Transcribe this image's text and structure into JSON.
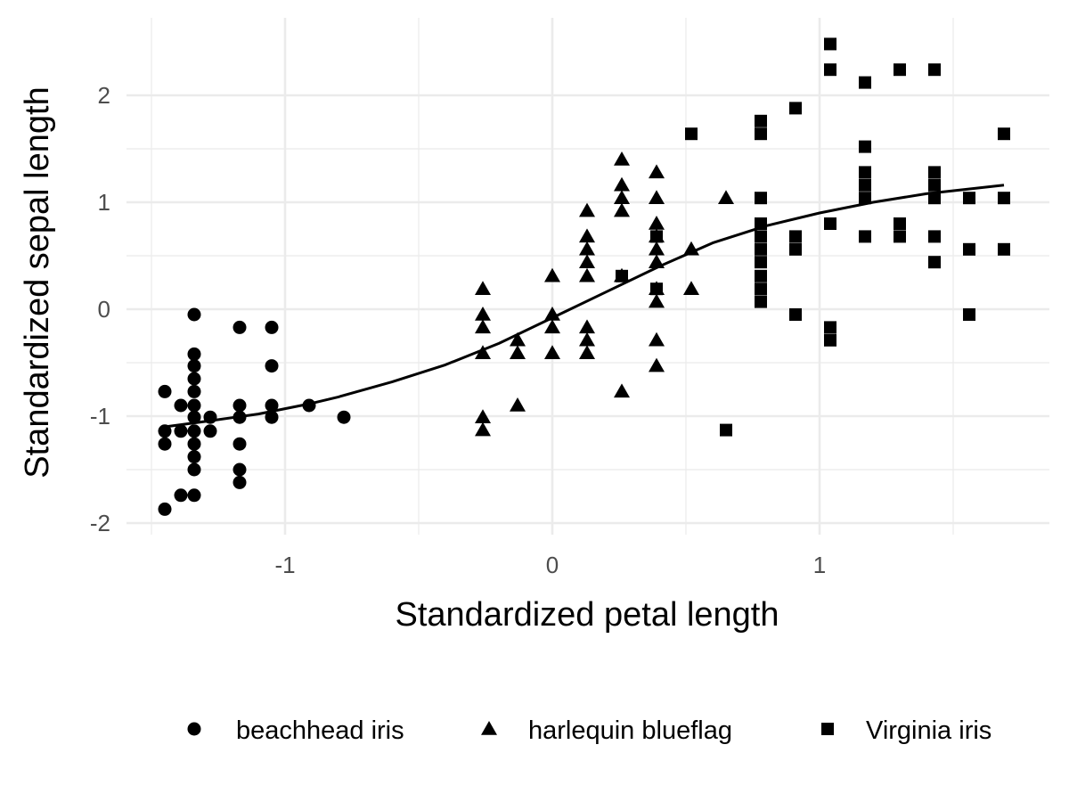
{
  "chart_data": {
    "type": "scatter",
    "title": "",
    "xlabel": "Standardized petal length",
    "ylabel": "Standardized sepal length",
    "xlim": [
      -1.58,
      1.85
    ],
    "ylim": [
      -2.05,
      2.55
    ],
    "x_ticks": [
      -1,
      0,
      1
    ],
    "x_tick_labels": [
      "-1",
      "0",
      "1"
    ],
    "y_ticks": [
      -2,
      -1,
      0,
      1,
      2
    ],
    "y_tick_labels": [
      "-2",
      "-1",
      "0",
      "1",
      "2"
    ],
    "x_minor_ticks": [
      -1.5,
      -0.5,
      0.5,
      1.5
    ],
    "y_minor_ticks": [
      -1.5,
      -0.5,
      0.5,
      1.5
    ],
    "grid": true,
    "legend_position": "bottom",
    "colors": {
      "points": "#000000",
      "grid": "#ebebeb",
      "smooth": "#000000"
    },
    "series": [
      {
        "name": "beachhead iris",
        "shape": "circle",
        "points": [
          [
            -1.34,
            -0.05
          ],
          [
            -1.34,
            -0.42
          ],
          [
            -1.34,
            -0.53
          ],
          [
            -1.34,
            -0.65
          ],
          [
            -1.34,
            -0.77
          ],
          [
            -1.34,
            -0.9
          ],
          [
            -1.34,
            -1.01
          ],
          [
            -1.34,
            -1.14
          ],
          [
            -1.34,
            -1.26
          ],
          [
            -1.34,
            -1.38
          ],
          [
            -1.34,
            -1.5
          ],
          [
            -1.34,
            -1.74
          ],
          [
            -1.39,
            -1.14
          ],
          [
            -1.39,
            -0.9
          ],
          [
            -1.39,
            -1.74
          ],
          [
            -1.45,
            -0.77
          ],
          [
            -1.45,
            -1.14
          ],
          [
            -1.45,
            -1.26
          ],
          [
            -1.45,
            -1.87
          ],
          [
            -1.28,
            -1.01
          ],
          [
            -1.28,
            -1.14
          ],
          [
            -1.17,
            -0.17
          ],
          [
            -1.17,
            -0.9
          ],
          [
            -1.17,
            -1.01
          ],
          [
            -1.17,
            -1.26
          ],
          [
            -1.17,
            -1.5
          ],
          [
            -1.17,
            -1.62
          ],
          [
            -1.05,
            -0.17
          ],
          [
            -1.05,
            -0.53
          ],
          [
            -1.05,
            -0.9
          ],
          [
            -1.05,
            -1.01
          ],
          [
            -0.91,
            -0.9
          ],
          [
            -0.78,
            -1.01
          ]
        ]
      },
      {
        "name": "harlequin blueflag",
        "shape": "triangle",
        "points": [
          [
            -0.26,
            0.19
          ],
          [
            -0.26,
            -0.05
          ],
          [
            -0.26,
            -0.17
          ],
          [
            -0.26,
            -0.41
          ],
          [
            -0.26,
            -1.01
          ],
          [
            -0.26,
            -1.13
          ],
          [
            -0.13,
            -0.29
          ],
          [
            -0.13,
            -0.41
          ],
          [
            -0.13,
            -0.9
          ],
          [
            0.0,
            0.31
          ],
          [
            0.0,
            -0.05
          ],
          [
            0.0,
            -0.17
          ],
          [
            0.0,
            -0.41
          ],
          [
            0.13,
            0.92
          ],
          [
            0.13,
            0.68
          ],
          [
            0.13,
            0.56
          ],
          [
            0.13,
            0.44
          ],
          [
            0.13,
            0.31
          ],
          [
            0.13,
            -0.17
          ],
          [
            0.13,
            -0.29
          ],
          [
            0.13,
            -0.41
          ],
          [
            0.26,
            1.4
          ],
          [
            0.26,
            1.16
          ],
          [
            0.26,
            1.04
          ],
          [
            0.26,
            0.92
          ],
          [
            0.26,
            0.31
          ],
          [
            0.26,
            -0.77
          ],
          [
            0.39,
            1.28
          ],
          [
            0.39,
            1.04
          ],
          [
            0.39,
            0.8
          ],
          [
            0.39,
            0.68
          ],
          [
            0.39,
            0.56
          ],
          [
            0.39,
            0.44
          ],
          [
            0.39,
            0.19
          ],
          [
            0.39,
            0.07
          ],
          [
            0.39,
            -0.29
          ],
          [
            0.39,
            -0.53
          ],
          [
            0.52,
            0.56
          ],
          [
            0.52,
            0.19
          ],
          [
            0.65,
            1.04
          ]
        ]
      },
      {
        "name": "Virginia iris",
        "shape": "square",
        "points": [
          [
            0.26,
            0.31
          ],
          [
            0.39,
            0.19
          ],
          [
            0.39,
            0.68
          ],
          [
            0.52,
            1.64
          ],
          [
            0.65,
            -1.13
          ],
          [
            0.78,
            1.76
          ],
          [
            0.78,
            1.64
          ],
          [
            0.78,
            1.04
          ],
          [
            0.78,
            0.8
          ],
          [
            0.78,
            0.68
          ],
          [
            0.78,
            0.56
          ],
          [
            0.78,
            0.44
          ],
          [
            0.78,
            0.31
          ],
          [
            0.78,
            0.19
          ],
          [
            0.78,
            0.07
          ],
          [
            0.91,
            1.88
          ],
          [
            0.91,
            0.68
          ],
          [
            0.91,
            0.56
          ],
          [
            0.91,
            -0.05
          ],
          [
            1.04,
            2.48
          ],
          [
            1.04,
            2.24
          ],
          [
            1.04,
            0.8
          ],
          [
            1.04,
            -0.17
          ],
          [
            1.04,
            -0.29
          ],
          [
            1.17,
            2.12
          ],
          [
            1.17,
            1.52
          ],
          [
            1.17,
            1.28
          ],
          [
            1.17,
            1.16
          ],
          [
            1.17,
            1.04
          ],
          [
            1.17,
            0.68
          ],
          [
            1.3,
            2.24
          ],
          [
            1.3,
            0.8
          ],
          [
            1.3,
            0.68
          ],
          [
            1.43,
            2.24
          ],
          [
            1.43,
            1.28
          ],
          [
            1.43,
            1.16
          ],
          [
            1.43,
            1.04
          ],
          [
            1.43,
            0.68
          ],
          [
            1.43,
            0.44
          ],
          [
            1.56,
            1.04
          ],
          [
            1.56,
            0.56
          ],
          [
            1.56,
            -0.05
          ],
          [
            1.69,
            1.64
          ],
          [
            1.69,
            1.04
          ],
          [
            1.69,
            0.56
          ]
        ]
      }
    ],
    "smooth_line": {
      "points": [
        [
          -1.45,
          -1.1
        ],
        [
          -1.3,
          -1.05
        ],
        [
          -1.1,
          -0.98
        ],
        [
          -0.9,
          -0.88
        ],
        [
          -0.8,
          -0.82
        ],
        [
          -0.6,
          -0.68
        ],
        [
          -0.4,
          -0.52
        ],
        [
          -0.2,
          -0.32
        ],
        [
          0.0,
          -0.08
        ],
        [
          0.2,
          0.16
        ],
        [
          0.4,
          0.4
        ],
        [
          0.6,
          0.62
        ],
        [
          0.8,
          0.78
        ],
        [
          1.0,
          0.9
        ],
        [
          1.2,
          1.0
        ],
        [
          1.4,
          1.08
        ],
        [
          1.69,
          1.16
        ]
      ]
    }
  }
}
